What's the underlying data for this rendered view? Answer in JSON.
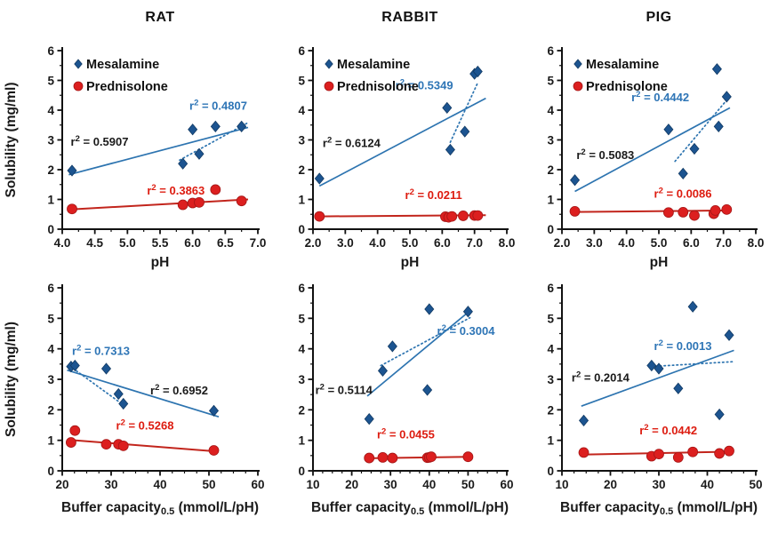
{
  "figure": {
    "background": "#ffffff"
  },
  "palette": {
    "axis": "#111111",
    "tick_text": "#1a1a1a",
    "title_text": "#111111",
    "mesalamine_marker": "#1c5490",
    "mesalamine_marker_stroke": "#123a63",
    "mesalamine_line": "#2d74b0",
    "prednisolone_marker": "#dc1f1f",
    "prednisolone_marker_stroke": "#a51616",
    "prednisolone_line": "#c2251c",
    "annotation_black": "#1a1a1a",
    "annotation_blue": "#2e75b6",
    "annotation_red": "#dd1c10"
  },
  "legend": {
    "items": [
      {
        "label": "Mesalamine",
        "marker": "diamond",
        "series": "mesalamine"
      },
      {
        "label": "Prednisolone",
        "marker": "circle",
        "series": "prednisolone"
      }
    ]
  },
  "axis_titles": {
    "y": "Solubility (mg/ml)",
    "x_ph": "pH",
    "x_bc_pre": "Buffer capacity",
    "x_bc_sub": "0.5",
    "x_bc_post": " (mmol/L/pH)"
  },
  "chart_data": [
    {
      "type": "scatter",
      "title": "RAT",
      "show_title": true,
      "show_legend": true,
      "show_ylabel": true,
      "xlabel_kind": "ph",
      "xlim": [
        4,
        7
      ],
      "ylim": [
        0,
        6
      ],
      "xticks": [
        4,
        4.5,
        5,
        5.5,
        6,
        6.5,
        7
      ],
      "xtick_labels": [
        "4.0",
        "4.5",
        "5.0",
        "5.5",
        "6.0",
        "6.5",
        "7.0"
      ],
      "yticks": [
        0,
        1,
        2,
        3,
        4,
        5,
        6
      ],
      "x_minor": 0.25,
      "y_minor": 0.5,
      "series": [
        {
          "name": "Mesalamine",
          "key": "mesalamine",
          "marker": "diamond",
          "x": [
            4.15,
            5.85,
            6.0,
            6.1,
            6.35,
            6.75
          ],
          "y": [
            1.97,
            2.2,
            3.35,
            2.53,
            3.45,
            3.45
          ]
        },
        {
          "name": "Prednisolone",
          "key": "prednisolone",
          "marker": "circle",
          "x": [
            4.15,
            5.85,
            6.0,
            6.1,
            6.35,
            6.75
          ],
          "y": [
            0.68,
            0.82,
            0.88,
            0.9,
            1.33,
            0.95
          ]
        }
      ],
      "trendlines": [
        {
          "series": "mesalamine",
          "style": "solid",
          "x1": 4.1,
          "y1": 1.83,
          "x2": 6.85,
          "y2": 3.42,
          "r2": "0.5907"
        },
        {
          "series": "mesalamine",
          "style": "dotted",
          "x1": 5.8,
          "y1": 2.32,
          "x2": 6.85,
          "y2": 3.58,
          "r2": "0.4807"
        },
        {
          "series": "prednisolone",
          "style": "solid",
          "x1": 4.1,
          "y1": 0.66,
          "x2": 6.85,
          "y2": 1.0,
          "r2": "0.3863"
        }
      ],
      "annotations": [
        {
          "color": "black",
          "r2": "0.5907",
          "x": 4.13,
          "y": 2.8
        },
        {
          "color": "blue",
          "r2": "0.4807",
          "x": 5.95,
          "y": 4.02
        },
        {
          "color": "red",
          "r2": "0.3863",
          "x": 5.3,
          "y": 1.16
        }
      ]
    },
    {
      "type": "scatter",
      "title": "RABBIT",
      "show_title": true,
      "show_legend": true,
      "show_ylabel": false,
      "xlabel_kind": "ph",
      "xlim": [
        2,
        8
      ],
      "ylim": [
        0,
        6
      ],
      "xticks": [
        2,
        3,
        4,
        5,
        6,
        7,
        8
      ],
      "xtick_labels": [
        "2.0",
        "3.0",
        "4.0",
        "5.0",
        "6.0",
        "7.0",
        "8.0"
      ],
      "yticks": [
        0,
        1,
        2,
        3,
        4,
        5,
        6
      ],
      "x_minor": 0.5,
      "y_minor": 0.5,
      "series": [
        {
          "name": "Mesalamine",
          "key": "mesalamine",
          "marker": "diamond",
          "x": [
            2.2,
            6.15,
            6.25,
            6.7,
            7.0,
            7.1
          ],
          "y": [
            1.7,
            4.08,
            2.67,
            3.28,
            5.22,
            5.3
          ]
        },
        {
          "name": "Prednisolone",
          "key": "prednisolone",
          "marker": "circle",
          "x": [
            2.2,
            6.1,
            6.2,
            6.3,
            6.65,
            7.0,
            7.1
          ],
          "y": [
            0.43,
            0.42,
            0.4,
            0.43,
            0.45,
            0.46,
            0.46
          ]
        }
      ],
      "trendlines": [
        {
          "series": "mesalamine",
          "style": "solid",
          "x1": 2.2,
          "y1": 1.45,
          "x2": 7.35,
          "y2": 4.4,
          "r2": "0.6124"
        },
        {
          "series": "mesalamine",
          "style": "dotted",
          "x1": 6.25,
          "y1": 2.92,
          "x2": 7.1,
          "y2": 4.92,
          "r2": "0.5349"
        },
        {
          "series": "prednisolone",
          "style": "solid",
          "x1": 2.2,
          "y1": 0.43,
          "x2": 7.35,
          "y2": 0.47,
          "r2": "0.0211"
        }
      ],
      "annotations": [
        {
          "color": "blue",
          "r2": "0.5349",
          "x": 4.55,
          "y": 4.7
        },
        {
          "color": "black",
          "r2": "0.6124",
          "x": 2.3,
          "y": 2.76
        },
        {
          "color": "red",
          "r2": "0.0211",
          "x": 4.85,
          "y": 1.02
        }
      ]
    },
    {
      "type": "scatter",
      "title": "PIG",
      "show_title": true,
      "show_legend": true,
      "show_ylabel": false,
      "xlabel_kind": "ph",
      "xlim": [
        2,
        8
      ],
      "ylim": [
        0,
        6
      ],
      "xticks": [
        2,
        3,
        4,
        5,
        6,
        7,
        8
      ],
      "xtick_labels": [
        "2.0",
        "3.0",
        "4.0",
        "5.0",
        "6.0",
        "7.0",
        "8.0"
      ],
      "yticks": [
        0,
        1,
        2,
        3,
        4,
        5,
        6
      ],
      "x_minor": 0.5,
      "y_minor": 0.5,
      "series": [
        {
          "name": "Mesalamine",
          "key": "mesalamine",
          "marker": "diamond",
          "x": [
            2.4,
            5.3,
            5.75,
            6.1,
            6.8,
            6.85,
            7.1
          ],
          "y": [
            1.65,
            3.35,
            1.87,
            2.7,
            5.38,
            3.45,
            4.45
          ]
        },
        {
          "name": "Prednisolone",
          "key": "prednisolone",
          "marker": "circle",
          "x": [
            2.4,
            5.3,
            5.75,
            6.1,
            6.7,
            6.75,
            7.1
          ],
          "y": [
            0.6,
            0.56,
            0.57,
            0.46,
            0.52,
            0.63,
            0.66
          ]
        }
      ],
      "trendlines": [
        {
          "series": "mesalamine",
          "style": "solid",
          "x1": 2.4,
          "y1": 1.27,
          "x2": 7.2,
          "y2": 4.08,
          "r2": "0.5083"
        },
        {
          "series": "mesalamine",
          "style": "dotted",
          "x1": 5.5,
          "y1": 2.28,
          "x2": 7.15,
          "y2": 4.4,
          "r2": "0.4442"
        },
        {
          "series": "prednisolone",
          "style": "solid",
          "x1": 2.4,
          "y1": 0.58,
          "x2": 7.2,
          "y2": 0.63,
          "r2": "0.0086"
        }
      ],
      "annotations": [
        {
          "color": "blue",
          "r2": "0.4442",
          "x": 4.15,
          "y": 4.3
        },
        {
          "color": "black",
          "r2": "0.5083",
          "x": 2.45,
          "y": 2.36
        },
        {
          "color": "red",
          "r2": "0.0086",
          "x": 4.85,
          "y": 1.06
        }
      ]
    },
    {
      "type": "scatter",
      "title": "",
      "show_title": false,
      "show_legend": false,
      "show_ylabel": true,
      "xlabel_kind": "bc",
      "xlim": [
        20,
        60
      ],
      "ylim": [
        0,
        6
      ],
      "xticks": [
        20,
        30,
        40,
        50,
        60
      ],
      "xtick_labels": [
        "20",
        "30",
        "40",
        "50",
        "60"
      ],
      "yticks": [
        0,
        1,
        2,
        3,
        4,
        5,
        6
      ],
      "x_minor": 2.5,
      "y_minor": 0.5,
      "series": [
        {
          "name": "Mesalamine",
          "key": "mesalamine",
          "marker": "diamond",
          "x": [
            21.8,
            22.6,
            29,
            31.5,
            32.5,
            51
          ],
          "y": [
            3.42,
            3.45,
            3.35,
            2.52,
            2.2,
            1.97
          ]
        },
        {
          "name": "Prednisolone",
          "key": "prednisolone",
          "marker": "circle",
          "x": [
            21.8,
            22.6,
            29,
            31.5,
            32.5,
            51
          ],
          "y": [
            0.93,
            1.32,
            0.87,
            0.87,
            0.82,
            0.67
          ]
        }
      ],
      "trendlines": [
        {
          "series": "mesalamine",
          "style": "solid",
          "x1": 21,
          "y1": 3.3,
          "x2": 52,
          "y2": 1.77,
          "r2": "0.6952"
        },
        {
          "series": "mesalamine",
          "style": "dotted",
          "x1": 21.5,
          "y1": 3.44,
          "x2": 33,
          "y2": 2.1,
          "r2": "0.7313"
        },
        {
          "series": "prednisolone",
          "style": "solid",
          "x1": 21,
          "y1": 1.02,
          "x2": 52,
          "y2": 0.63,
          "r2": "0.5268"
        }
      ],
      "annotations": [
        {
          "color": "blue",
          "r2": "0.7313",
          "x": 22,
          "y": 3.8
        },
        {
          "color": "black",
          "r2": "0.6952",
          "x": 38,
          "y": 2.5
        },
        {
          "color": "red",
          "r2": "0.5268",
          "x": 31,
          "y": 1.36
        }
      ]
    },
    {
      "type": "scatter",
      "title": "",
      "show_title": false,
      "show_legend": false,
      "show_ylabel": false,
      "xlabel_kind": "bc",
      "xlim": [
        10,
        60
      ],
      "ylim": [
        0,
        6
      ],
      "xticks": [
        10,
        20,
        30,
        40,
        50,
        60
      ],
      "xtick_labels": [
        "10",
        "20",
        "30",
        "40",
        "50",
        "60"
      ],
      "yticks": [
        0,
        1,
        2,
        3,
        4,
        5,
        6
      ],
      "x_minor": 2.5,
      "y_minor": 0.5,
      "series": [
        {
          "name": "Mesalamine",
          "key": "mesalamine",
          "marker": "diamond",
          "x": [
            24.5,
            28,
            30.5,
            39.5,
            40,
            50
          ],
          "y": [
            1.7,
            3.28,
            4.08,
            2.65,
            5.3,
            5.22
          ]
        },
        {
          "name": "Prednisolone",
          "key": "prednisolone",
          "marker": "circle",
          "x": [
            24.5,
            28,
            30.5,
            39.5,
            40,
            40.5,
            50
          ],
          "y": [
            0.42,
            0.44,
            0.42,
            0.43,
            0.44,
            0.46,
            0.46
          ]
        }
      ],
      "trendlines": [
        {
          "series": "mesalamine",
          "style": "solid",
          "x1": 24,
          "y1": 2.45,
          "x2": 50.5,
          "y2": 5.25,
          "r2": "0.5114"
        },
        {
          "series": "mesalamine",
          "style": "dotted",
          "x1": 27.5,
          "y1": 3.45,
          "x2": 50.5,
          "y2": 5.02,
          "r2": "0.3004"
        },
        {
          "series": "prednisolone",
          "style": "solid",
          "x1": 24,
          "y1": 0.41,
          "x2": 50.5,
          "y2": 0.46,
          "r2": "0.0455"
        }
      ],
      "annotations": [
        {
          "color": "blue",
          "r2": "0.3004",
          "x": 42,
          "y": 4.45
        },
        {
          "color": "black",
          "r2": "0.5114",
          "x": 10.6,
          "y": 2.52
        },
        {
          "color": "red",
          "r2": "0.0455",
          "x": 26.5,
          "y": 1.06
        }
      ]
    },
    {
      "type": "scatter",
      "title": "",
      "show_title": false,
      "show_legend": false,
      "show_ylabel": false,
      "xlabel_kind": "bc",
      "xlim": [
        10,
        50
      ],
      "ylim": [
        0,
        6
      ],
      "xticks": [
        10,
        20,
        30,
        40,
        50
      ],
      "xtick_labels": [
        "10",
        "20",
        "30",
        "40",
        "50"
      ],
      "yticks": [
        0,
        1,
        2,
        3,
        4,
        5,
        6
      ],
      "x_minor": 2.5,
      "y_minor": 0.5,
      "series": [
        {
          "name": "Mesalamine",
          "key": "mesalamine",
          "marker": "diamond",
          "x": [
            14.5,
            28.5,
            30,
            34,
            37,
            42.5,
            44.5
          ],
          "y": [
            1.65,
            3.45,
            3.35,
            2.7,
            5.38,
            1.85,
            4.45
          ]
        },
        {
          "name": "Prednisolone",
          "key": "prednisolone",
          "marker": "circle",
          "x": [
            14.5,
            28.5,
            30,
            34,
            37,
            42.5,
            44.5
          ],
          "y": [
            0.6,
            0.48,
            0.55,
            0.44,
            0.62,
            0.57,
            0.65
          ]
        }
      ],
      "trendlines": [
        {
          "series": "mesalamine",
          "style": "solid",
          "x1": 14,
          "y1": 2.12,
          "x2": 45.5,
          "y2": 3.95,
          "r2": "0.2014"
        },
        {
          "series": "mesalamine",
          "style": "dotted",
          "x1": 28.5,
          "y1": 3.42,
          "x2": 45.5,
          "y2": 3.58,
          "r2": "0.0013"
        },
        {
          "series": "prednisolone",
          "style": "solid",
          "x1": 14,
          "y1": 0.53,
          "x2": 45.5,
          "y2": 0.63,
          "r2": "0.0442"
        }
      ],
      "annotations": [
        {
          "color": "blue",
          "r2": "0.0013",
          "x": 29,
          "y": 3.96
        },
        {
          "color": "black",
          "r2": "0.2014",
          "x": 12,
          "y": 2.92
        },
        {
          "color": "red",
          "r2": "0.0442",
          "x": 26,
          "y": 1.2
        }
      ]
    }
  ]
}
